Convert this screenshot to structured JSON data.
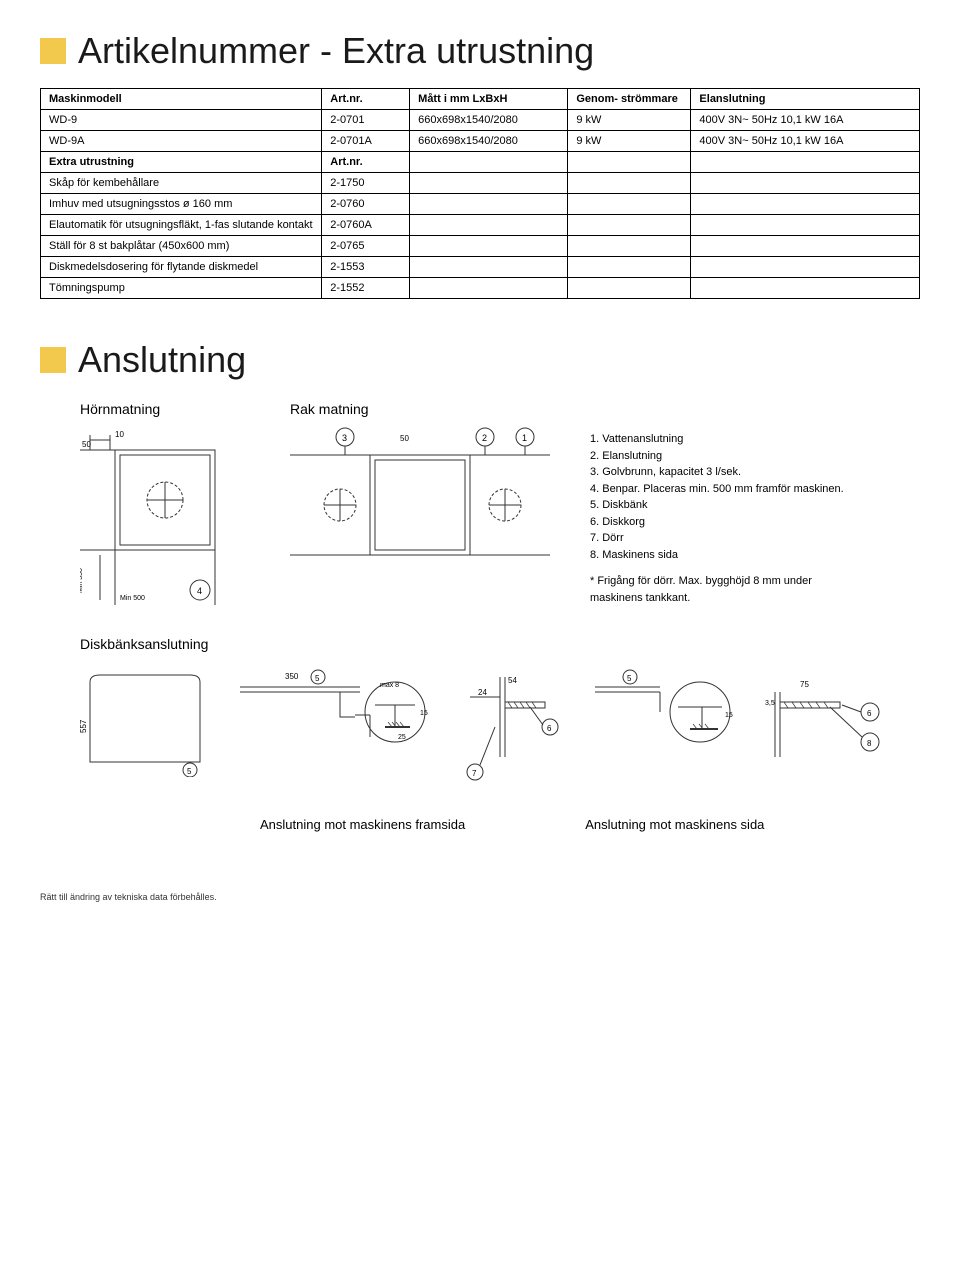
{
  "title1": "Artikelnummer - Extra utrustning",
  "table": {
    "type": "table",
    "columns": [
      "Maskinmodell",
      "Art.nr.",
      "Mått i mm LxBxH",
      "Genom-\nströmmare",
      "Elanslutning"
    ],
    "model_rows": [
      {
        "name": "WD-9",
        "art": "2-0701",
        "matt": "660x698x1540/2080",
        "genom": "9 kW",
        "elan": "400V 3N~ 50Hz 10,1 kW 16A"
      },
      {
        "name": "WD-9A",
        "art": "2-0701A",
        "matt": "660x698x1540/2080",
        "genom": "9 kW",
        "elan": "400V 3N~ 50Hz 10,1 kW 16A"
      }
    ],
    "subheader": {
      "c0": "Extra utrustning",
      "c1": "Art.nr."
    },
    "extra_rows": [
      {
        "name": "Skåp för kembehållare",
        "art": "2-1750"
      },
      {
        "name": "Imhuv med utsugningsstos ø 160 mm",
        "art": "2-0760"
      },
      {
        "name": "Elautomatik för utsugningsfläkt, 1-fas slutande kontakt",
        "art": "2-0760A"
      },
      {
        "name": "Ställ för 8 st bakplåtar (450x600 mm)",
        "art": "2-0765"
      },
      {
        "name": "Diskmedelsdosering för flytande diskmedel",
        "art": "2-1553"
      },
      {
        "name": "Tömningspump",
        "art": "2-1552"
      }
    ],
    "border_color": "#000000",
    "font_size": 11
  },
  "title2": "Anslutning",
  "feed_labels": {
    "horn": "Hörnmatning",
    "rak": "Rak matning"
  },
  "legend": {
    "items": [
      "1. Vattenanslutning",
      "2. Elanslutning",
      "3. Golvbrunn, kapacitet 3 l/sek.",
      "4. Benpar. Placeras min. 500 mm framför maskinen.",
      "5. Diskbänk",
      "6. Diskkorg",
      "7. Dörr",
      "8. Maskinens sida"
    ],
    "note": "* Frigång för dörr. Max. bygghöjd 8 mm under maskinens tankkant."
  },
  "diskbank_title": "Diskbänksanslutning",
  "bottom_caption1": "Anslutning mot maskinens framsida",
  "bottom_caption2": "Anslutning mot maskinens sida",
  "footer": "Rätt till ändring av tekniska data förbehålles.",
  "colors": {
    "accent_yellow": "#f2c94c",
    "text": "#000000",
    "diagram_line": "#333333"
  },
  "diagram_annotations": {
    "horn": [
      "50",
      "10",
      "Min 350",
      "Min 500",
      "4"
    ],
    "rak_top": [
      "3",
      "50",
      "2",
      "1"
    ],
    "db_left": [
      "557",
      "5"
    ],
    "db_mid1": [
      "350",
      "max 8",
      "15",
      "25",
      "5"
    ],
    "db_mid2": [
      "54",
      "24",
      "7",
      "6"
    ],
    "db_right1": [
      "5",
      "15"
    ],
    "db_right2": [
      "75",
      "3,5",
      "8",
      "6"
    ]
  }
}
